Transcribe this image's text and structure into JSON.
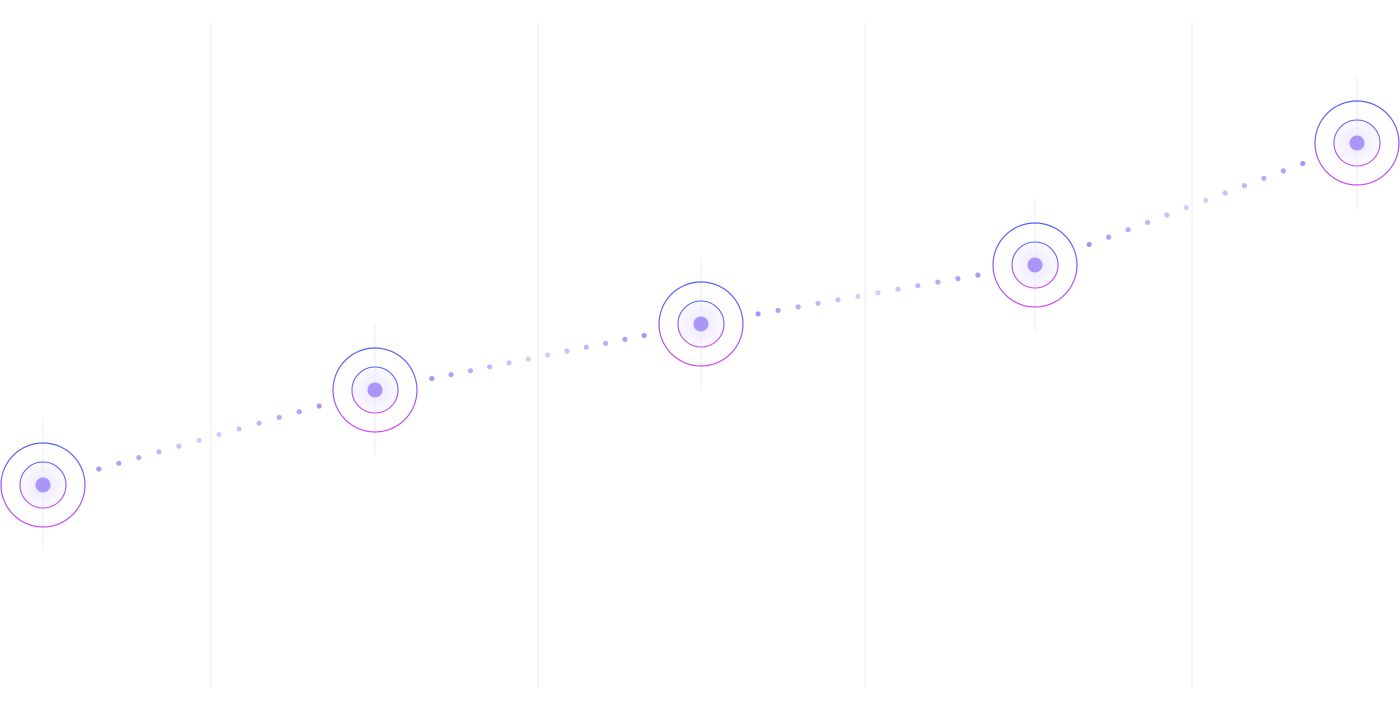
{
  "diagram": {
    "milestone_count": 5,
    "colors": {
      "background": "#ffffff",
      "gridline": "#ececf2",
      "dot": "#a996f8",
      "ring_gradient_start": "#4f63f6",
      "ring_gradient_end": "#d04cf0",
      "center_glow": "#ede8ff"
    },
    "milestones": [
      {
        "id": "milestone-1"
      },
      {
        "id": "milestone-2"
      },
      {
        "id": "milestone-3"
      },
      {
        "id": "milestone-4"
      },
      {
        "id": "milestone-5"
      }
    ]
  }
}
